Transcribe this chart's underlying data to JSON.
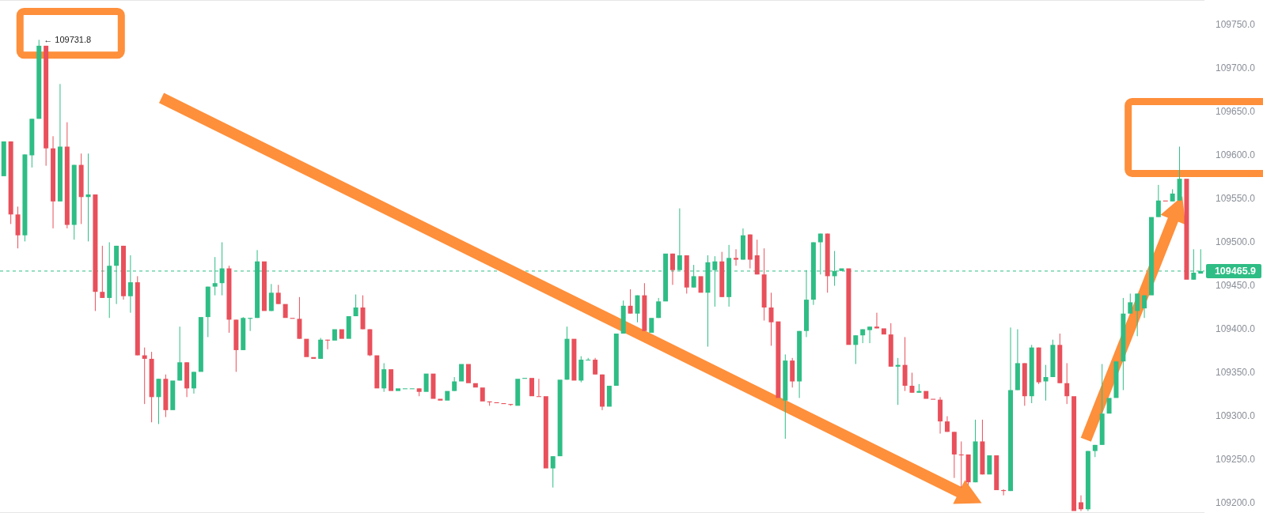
{
  "chart_data": {
    "type": "candlestick",
    "categories": [
      null,
      null,
      null,
      null,
      null,
      null,
      null,
      null,
      null,
      null,
      null,
      null,
      null,
      null,
      null,
      null,
      null,
      null,
      null,
      null,
      null,
      null,
      null,
      null,
      null,
      null,
      null,
      null,
      null,
      null,
      null,
      null,
      null,
      null,
      null,
      null,
      null,
      null,
      null,
      null,
      null,
      null,
      null,
      null,
      null,
      null,
      null,
      null,
      null,
      null,
      null,
      null,
      null,
      null,
      null,
      null,
      null,
      null,
      null,
      null,
      null,
      null,
      null,
      null,
      null,
      null,
      null,
      null,
      null,
      null,
      null,
      null,
      null,
      null,
      null,
      null,
      null,
      null,
      null,
      null,
      null,
      null,
      null,
      null,
      null,
      null,
      null,
      null,
      null,
      null,
      null,
      null,
      null,
      null,
      null,
      null,
      null,
      null,
      null,
      null,
      null,
      null,
      null,
      null,
      null,
      null,
      null,
      null,
      null,
      null,
      null,
      null,
      null,
      null,
      null,
      null,
      null,
      null,
      null,
      null,
      null,
      null,
      null,
      null,
      null,
      null,
      null,
      null,
      null,
      null,
      null,
      null,
      null,
      null,
      null,
      null,
      null,
      null,
      null,
      null,
      null,
      null,
      null,
      null,
      null,
      null,
      null,
      null,
      null,
      null,
      null,
      null,
      null,
      null,
      null,
      null,
      null,
      null,
      null,
      null,
      null,
      null,
      null,
      null,
      null,
      null,
      null,
      null,
      null,
      null,
      null
    ],
    "ohlc": [
      [
        109575,
        109615,
        109575,
        109615
      ],
      [
        109615,
        109615,
        109520,
        109531
      ],
      [
        109531,
        109540,
        109492,
        109507
      ],
      [
        109507,
        109600,
        109500,
        109600
      ],
      [
        109599,
        109641,
        109585,
        109641
      ],
      [
        109641,
        109731.8,
        109641,
        109725
      ],
      [
        109725,
        109725,
        109587,
        109607
      ],
      [
        109607,
        109621,
        109515,
        109546
      ],
      [
        109546,
        109681,
        109546,
        109609
      ],
      [
        109609,
        109637,
        109515,
        109519
      ],
      [
        109519,
        109588,
        109502,
        109588
      ],
      [
        109588,
        109601,
        109520,
        109551
      ],
      [
        109551,
        109601,
        109500,
        109554
      ],
      [
        109554,
        109554,
        109420,
        109442
      ],
      [
        109442,
        109495,
        109435,
        109435
      ],
      [
        109435,
        109499,
        109412,
        109472
      ],
      [
        109472,
        109495,
        109428,
        109495
      ],
      [
        109495,
        109495,
        109433,
        109437
      ],
      [
        109437,
        109484,
        109418,
        109453
      ],
      [
        109453,
        109460,
        109369,
        109369
      ],
      [
        109369,
        109378,
        109313,
        109365
      ],
      [
        109365,
        109373,
        109292,
        109321
      ],
      [
        109321,
        109342,
        109290,
        109342
      ],
      [
        109342,
        109347,
        109298,
        109306
      ],
      [
        109306,
        109340,
        109306,
        109340
      ],
      [
        109340,
        109402,
        109340,
        109361
      ],
      [
        109361,
        109361,
        109321,
        109331
      ],
      [
        109331,
        109350,
        109325,
        109350
      ],
      [
        109350,
        109413,
        109350,
        109413
      ],
      [
        109413,
        109448,
        109390,
        109448
      ],
      [
        109448,
        109482,
        109438,
        109452
      ],
      [
        109452,
        109499,
        109438,
        109469
      ],
      [
        109469,
        109472,
        109395,
        109410
      ],
      [
        109410,
        109410,
        109350,
        109375
      ],
      [
        109375,
        109413,
        109375,
        109412
      ],
      [
        109411,
        109412,
        109397,
        109412
      ],
      [
        109412,
        109490,
        109412,
        109477
      ],
      [
        109477,
        109477,
        109420,
        109420
      ],
      [
        109420,
        109451,
        109420,
        109441
      ],
      [
        109441,
        109450,
        109428,
        109428
      ],
      [
        109428,
        109428,
        109412,
        109412
      ],
      [
        109412,
        109412,
        109411,
        109411
      ],
      [
        109411,
        109436,
        109388,
        109388
      ],
      [
        109388,
        109388,
        109367,
        109367
      ],
      [
        109367,
        109367,
        109365,
        109365
      ],
      [
        109365,
        109389,
        109365,
        109387
      ],
      [
        109387,
        109387,
        109376,
        109386
      ],
      [
        109386,
        109399,
        109386,
        109399
      ],
      [
        109399,
        109399,
        109388,
        109388
      ],
      [
        109388,
        109414,
        109388,
        109414
      ],
      [
        109414,
        109439,
        109414,
        109424
      ],
      [
        109424,
        109438,
        109399,
        109399
      ],
      [
        109399,
        109399,
        109368,
        109369
      ],
      [
        109369,
        109369,
        109331,
        109331
      ],
      [
        109331,
        109360,
        109327,
        109353
      ],
      [
        109353,
        109353,
        109328,
        109328
      ],
      [
        109328,
        109331,
        109328,
        109331
      ],
      [
        109331,
        109331,
        109331,
        109331
      ],
      [
        109331,
        109331,
        109331,
        109331
      ],
      [
        109331,
        109331,
        109322,
        109327
      ],
      [
        109327,
        109348,
        109327,
        109348
      ],
      [
        109348,
        109348,
        109319,
        109319
      ],
      [
        109319,
        109319,
        109317,
        109317
      ],
      [
        109317,
        109328,
        109317,
        109328
      ],
      [
        109328,
        109344,
        109328,
        109339
      ],
      [
        109339,
        109359,
        109339,
        109359
      ],
      [
        109359,
        109359,
        109337,
        109337
      ],
      [
        109337,
        109337,
        109332,
        109332
      ],
      [
        109332,
        109332,
        109316,
        109316
      ],
      [
        109316,
        109316,
        109311,
        109315
      ],
      [
        109315,
        109315,
        109314,
        109314
      ],
      [
        109314,
        109314,
        109313,
        109313
      ],
      [
        109313,
        109313,
        109311,
        109312
      ],
      [
        109311,
        109342,
        109311,
        109342
      ],
      [
        109342,
        109343,
        109342,
        109343
      ],
      [
        109343,
        109343,
        109322,
        109322
      ],
      [
        109322,
        109342,
        109322,
        109322
      ],
      [
        109322,
        109322,
        109239,
        109239
      ],
      [
        109239,
        109253,
        109217,
        109253
      ],
      [
        109253,
        109341,
        109253,
        109341
      ],
      [
        109341,
        109402,
        109341,
        109388
      ],
      [
        109388,
        109388,
        109340,
        109340
      ],
      [
        109340,
        109368,
        109338,
        109364
      ],
      [
        109364,
        109366,
        109364,
        109364
      ],
      [
        109364,
        109366,
        109347,
        109347
      ],
      [
        109347,
        109347,
        109306,
        109310
      ],
      [
        109310,
        109334,
        109310,
        109334
      ],
      [
        109334,
        109394,
        109334,
        109394
      ],
      [
        109394,
        109432,
        109394,
        109426
      ],
      [
        109426,
        109445,
        109417,
        109417
      ],
      [
        109417,
        109438,
        109407,
        109438
      ],
      [
        109438,
        109452,
        109397,
        109397
      ],
      [
        109395,
        109412,
        109395,
        109412
      ],
      [
        109412,
        109435,
        109412,
        109431
      ],
      [
        109431,
        109486,
        109431,
        109486
      ],
      [
        109486,
        109486,
        109450,
        109467
      ],
      [
        109467,
        109538,
        109467,
        109484
      ],
      [
        109484,
        109484,
        109440,
        109447
      ],
      [
        109447,
        109473,
        109447,
        109460
      ],
      [
        109460,
        109460,
        109441,
        109441
      ],
      [
        109441,
        109484,
        109379,
        109476
      ],
      [
        109467,
        109483,
        109425,
        109477
      ],
      [
        109477,
        109488,
        109436,
        109436
      ],
      [
        109436,
        109496,
        109425,
        109481
      ],
      [
        109481,
        109491,
        109472,
        109479
      ],
      [
        109479,
        109515,
        109479,
        109507
      ],
      [
        109508,
        109508,
        109469,
        109479
      ],
      [
        109484,
        109502,
        109462,
        109462
      ],
      [
        109462,
        109492,
        109409,
        109424
      ],
      [
        109424,
        109441,
        109380,
        109407
      ],
      [
        109408,
        109408,
        109320,
        109320
      ],
      [
        109317,
        109370,
        109273,
        109363
      ],
      [
        109363,
        109366,
        109332,
        109339
      ],
      [
        109339,
        109397,
        109320,
        109397
      ],
      [
        109397,
        109467,
        109390,
        109433
      ],
      [
        109433,
        109499,
        109427,
        109499
      ],
      [
        109499,
        109509,
        109462,
        109509
      ],
      [
        109509,
        109509,
        109441,
        109460
      ],
      [
        109460,
        109489,
        109449,
        109466
      ],
      [
        109466,
        109469,
        109466,
        109469
      ],
      [
        109469,
        109469,
        109381,
        109381
      ],
      [
        109381,
        109392,
        109359,
        109392
      ],
      [
        109392,
        109399,
        109383,
        109399
      ],
      [
        109398,
        109402,
        109383,
        109402
      ],
      [
        109402,
        109418,
        109400,
        109400
      ],
      [
        109400,
        109400,
        109393,
        109393
      ],
      [
        109393,
        109406,
        109356,
        109356
      ],
      [
        109356,
        109366,
        109312,
        109358
      ],
      [
        109358,
        109390,
        109328,
        109334
      ],
      [
        109334,
        109349,
        109326,
        109326
      ],
      [
        109326,
        109336,
        109326,
        109328
      ],
      [
        109328,
        109328,
        109319,
        109319
      ],
      [
        109319,
        109319,
        109318,
        109318
      ],
      [
        109318,
        109321,
        109279,
        109293
      ],
      [
        109293,
        109299,
        109281,
        109281
      ],
      [
        109281,
        109281,
        109228,
        109255
      ],
      [
        109255,
        109270,
        109217,
        109254
      ],
      [
        109255,
        109255,
        109220,
        109223
      ],
      [
        109223,
        109295,
        109223,
        109270
      ],
      [
        109270,
        109295,
        109232,
        109232
      ],
      [
        109232,
        109254,
        109232,
        109254
      ],
      [
        109254,
        109254,
        109214,
        109214
      ],
      [
        109214,
        109215,
        109208,
        109213
      ],
      [
        109213,
        109401,
        109213,
        109329
      ],
      [
        109329,
        109399,
        109329,
        109360
      ],
      [
        109360,
        109360,
        109311,
        109322
      ],
      [
        109322,
        109381,
        109314,
        109378
      ],
      [
        109378,
        109378,
        109336,
        109338
      ],
      [
        109339,
        109358,
        109317,
        109344
      ],
      [
        109344,
        109387,
        109344,
        109381
      ],
      [
        109381,
        109394,
        109337,
        109337
      ],
      [
        109337,
        109360,
        109313,
        109322
      ],
      [
        109322,
        109322,
        109190,
        109190
      ],
      [
        109200,
        109208,
        109190,
        109192
      ],
      [
        109192,
        109259,
        109190,
        109259
      ],
      [
        109259,
        109266,
        109252,
        109266
      ],
      [
        109266,
        109359,
        109266,
        109302
      ],
      [
        109302,
        109320,
        109302,
        109320
      ],
      [
        109320,
        109362,
        109320,
        109362
      ],
      [
        109362,
        109435,
        109329,
        109417
      ],
      [
        109417,
        109440,
        109417,
        109430
      ],
      [
        109420,
        109440,
        109391,
        109440
      ],
      [
        109423,
        109438,
        109412,
        109438
      ],
      [
        109438,
        109528,
        109438,
        109528
      ],
      [
        109528,
        109565,
        109528,
        109547
      ],
      [
        109547,
        109547,
        109546,
        109546
      ],
      [
        109546,
        109560,
        109546,
        109555
      ],
      [
        109547,
        109609,
        109547,
        109572
      ],
      [
        109572,
        109572,
        109456,
        109456
      ],
      [
        109456,
        109491,
        109456,
        109464
      ],
      [
        109463,
        109491,
        109463,
        109465.9
      ]
    ],
    "colors": [
      "#2ebd85",
      "#e8505b",
      "#e8505b",
      "#2ebd85",
      "#2ebd85",
      "#2ebd85",
      "#e8505b",
      "#e8505b",
      "#2ebd85",
      "#e8505b",
      "#2ebd85",
      "#e8505b",
      "#2ebd85",
      "#e8505b",
      "#e8505b",
      "#2ebd85",
      "#2ebd85",
      "#e8505b",
      "#2ebd85",
      "#e8505b",
      "#e8505b",
      "#e8505b",
      "#2ebd85",
      "#e8505b",
      "#2ebd85",
      "#2ebd85",
      "#e8505b",
      "#2ebd85",
      "#2ebd85",
      "#2ebd85",
      "#2ebd85",
      "#2ebd85",
      "#e8505b",
      "#e8505b",
      "#2ebd85",
      "#2ebd85",
      "#2ebd85",
      "#e8505b",
      "#2ebd85",
      "#e8505b",
      "#e8505b",
      "#e8505b",
      "#e8505b",
      "#e8505b",
      "#e8505b",
      "#2ebd85",
      "#e8505b",
      "#2ebd85",
      "#e8505b",
      "#2ebd85",
      "#2ebd85",
      "#e8505b",
      "#e8505b",
      "#e8505b",
      "#2ebd85",
      "#e8505b",
      "#2ebd85",
      "#2ebd85",
      "#2ebd85",
      "#e8505b",
      "#2ebd85",
      "#e8505b",
      "#e8505b",
      "#2ebd85",
      "#2ebd85",
      "#2ebd85",
      "#e8505b",
      "#e8505b",
      "#e8505b",
      "#e8505b",
      "#e8505b",
      "#e8505b",
      "#e8505b",
      "#2ebd85",
      "#2ebd85",
      "#e8505b",
      "#e8505b",
      "#e8505b",
      "#2ebd85",
      "#2ebd85",
      "#2ebd85",
      "#e8505b",
      "#2ebd85",
      "#2ebd85",
      "#e8505b",
      "#e8505b",
      "#2ebd85",
      "#2ebd85",
      "#2ebd85",
      "#e8505b",
      "#2ebd85",
      "#e8505b",
      "#2ebd85",
      "#2ebd85",
      "#2ebd85",
      "#e8505b",
      "#2ebd85",
      "#e8505b",
      "#2ebd85",
      "#e8505b",
      "#2ebd85",
      "#2ebd85",
      "#e8505b",
      "#2ebd85",
      "#e8505b",
      "#2ebd85",
      "#e8505b",
      "#e8505b",
      "#e8505b",
      "#e8505b",
      "#e8505b",
      "#2ebd85",
      "#e8505b",
      "#2ebd85",
      "#2ebd85",
      "#2ebd85",
      "#2ebd85",
      "#e8505b",
      "#2ebd85",
      "#2ebd85",
      "#e8505b",
      "#2ebd85",
      "#2ebd85",
      "#2ebd85",
      "#e8505b",
      "#e8505b",
      "#e8505b",
      "#2ebd85",
      "#e8505b",
      "#e8505b",
      "#2ebd85",
      "#e8505b",
      "#e8505b",
      "#e8505b",
      "#e8505b",
      "#e8505b",
      "#e8505b",
      "#e8505b",
      "#2ebd85",
      "#e8505b",
      "#2ebd85",
      "#e8505b",
      "#e8505b",
      "#2ebd85",
      "#2ebd85",
      "#e8505b",
      "#2ebd85",
      "#e8505b",
      "#2ebd85",
      "#2ebd85",
      "#e8505b",
      "#e8505b",
      "#e8505b",
      "#e8505b",
      "#2ebd85",
      "#2ebd85",
      "#2ebd85",
      "#2ebd85",
      "#2ebd85",
      "#2ebd85",
      "#2ebd85",
      "#2ebd85",
      "#2ebd85",
      "#2ebd85",
      "#2ebd85",
      "#e8505b",
      "#2ebd85",
      "#2ebd85",
      "#e8505b",
      "#2ebd85",
      "#2ebd85"
    ],
    "ylim": [
      109187.7,
      109777.6
    ],
    "yticks": [
      {
        "value": 109200,
        "label": "109200.0"
      },
      {
        "value": 109250,
        "label": "109250.0"
      },
      {
        "value": 109300,
        "label": "109300.0"
      },
      {
        "value": 109350,
        "label": "109350.0"
      },
      {
        "value": 109400,
        "label": "109400.0"
      },
      {
        "value": 109450,
        "label": "109450.0"
      },
      {
        "value": 109500,
        "label": "109500.0"
      },
      {
        "value": 109550,
        "label": "109550.0"
      },
      {
        "value": 109600,
        "label": "109600.0"
      },
      {
        "value": 109650,
        "label": "109650.0"
      },
      {
        "value": 109700,
        "label": "109700.0"
      },
      {
        "value": 109750,
        "label": "109750.0"
      }
    ],
    "tick_labels": "y",
    "ref_lines": [
      {
        "axis": "y",
        "value": 109465.9,
        "label": "109465.9",
        "color": "#2ebd85",
        "line_style": "dashed"
      }
    ],
    "annotations": [
      "← 109731.8"
    ]
  }
}
